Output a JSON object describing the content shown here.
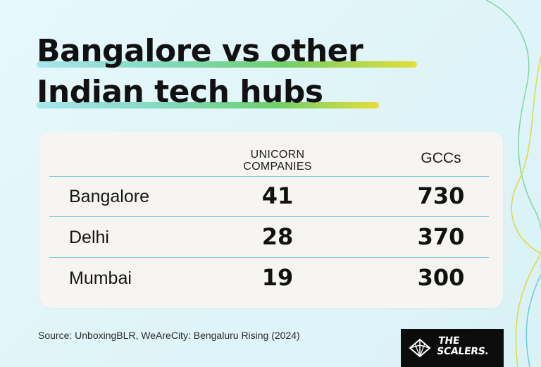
{
  "title": {
    "line1": "Bangalore vs other",
    "line2": "Indian tech hubs"
  },
  "chart_data": {
    "type": "table",
    "columns": [
      "",
      "UNICORN COMPANIES",
      "GCCs"
    ],
    "header": {
      "unicorn_line1": "UNICORN",
      "unicorn_line2": "COMPANIES",
      "gccs": "GCCs"
    },
    "rows": [
      {
        "city": "Bangalore",
        "unicorns": "41",
        "gccs": "730"
      },
      {
        "city": "Delhi",
        "unicorns": "28",
        "gccs": "370"
      },
      {
        "city": "Mumbai",
        "unicorns": "19",
        "gccs": "300"
      }
    ]
  },
  "source": "Source: UnboxingBLR, WeAreCity: Bengaluru Rising (2024)",
  "logo": {
    "line1": "THE",
    "line2": "SCALERS."
  },
  "colors": {
    "highlight_start": "#9ae0ea",
    "highlight_mid": "#6fd08a",
    "highlight_end": "#e6dd3a",
    "divider": "#7ecad6",
    "card": "#f7f5f2"
  }
}
